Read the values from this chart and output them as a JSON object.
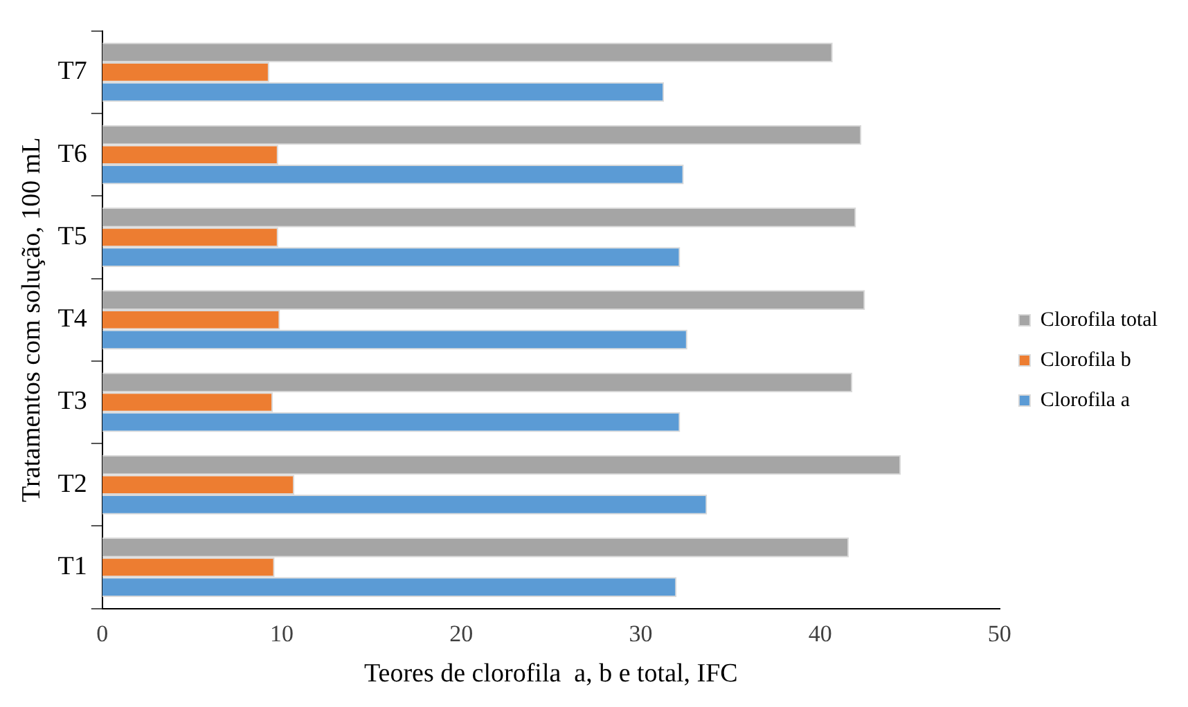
{
  "chart_data": {
    "type": "bar",
    "orientation": "horizontal",
    "xlabel": "Teores de clorofila  a, b e total, IFC",
    "ylabel": "Tratamentos com solução, 100 mL",
    "categories": [
      "T7",
      "T6",
      "T5",
      "T4",
      "T3",
      "T2",
      "T1"
    ],
    "series": [
      {
        "name": "Clorofila total",
        "color": "#a5a5a5",
        "values": [
          40.7,
          42.3,
          42.0,
          42.5,
          41.8,
          44.5,
          41.6
        ]
      },
      {
        "name": "Clorofila b",
        "color": "#ed7d31",
        "values": [
          9.3,
          9.8,
          9.8,
          9.9,
          9.5,
          10.7,
          9.6
        ]
      },
      {
        "name": "Clorofila a",
        "color": "#5b9bd5",
        "values": [
          31.3,
          32.4,
          32.2,
          32.6,
          32.2,
          33.7,
          32.0
        ]
      }
    ],
    "xlim": [
      0,
      50
    ],
    "xticks": [
      0,
      10,
      20,
      30,
      40,
      50
    ],
    "grid": false,
    "legend": "right"
  }
}
